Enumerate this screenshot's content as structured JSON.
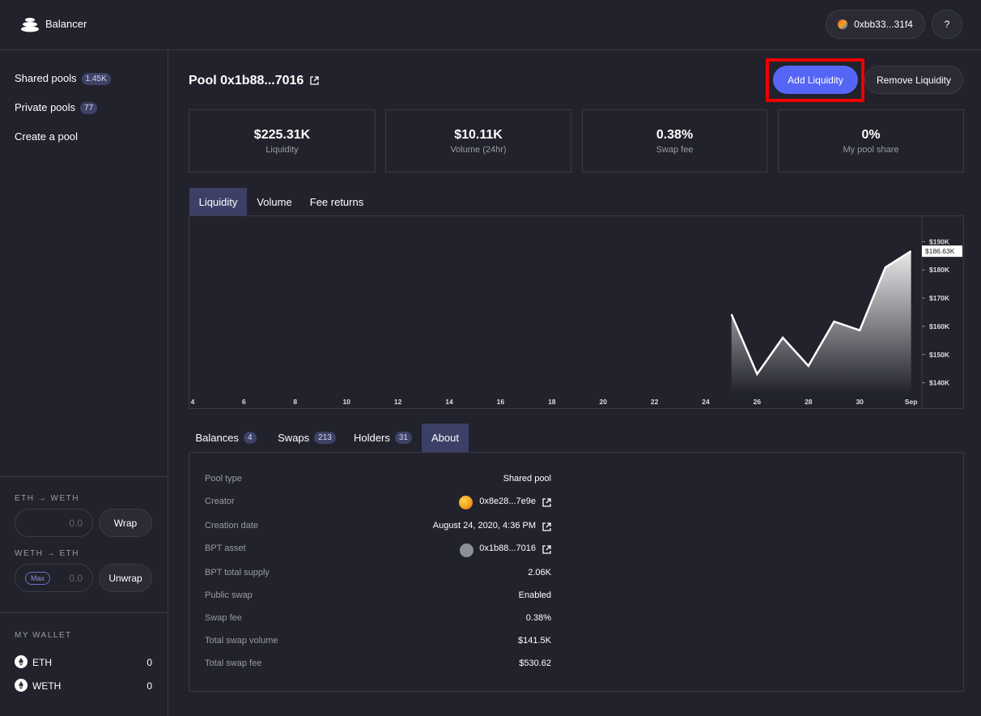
{
  "header": {
    "brand": "Balancer",
    "account": "0xbb33...31f4",
    "help": "?"
  },
  "sidebar": {
    "nav": [
      {
        "label": "Shared pools",
        "badge": "1.45K"
      },
      {
        "label": "Private pools",
        "badge": "77"
      },
      {
        "label": "Create a pool"
      }
    ],
    "wrap": {
      "title": "ETH → WETH",
      "placeholder": "0.0",
      "button": "Wrap"
    },
    "unwrap": {
      "title": "WETH → ETH",
      "max": "Max",
      "placeholder": "0.0",
      "button": "Unwrap"
    },
    "wallet": {
      "title": "MY WALLET",
      "assets": [
        {
          "symbol": "ETH",
          "balance": "0"
        },
        {
          "symbol": "WETH",
          "balance": "0"
        }
      ]
    }
  },
  "pool": {
    "title": "Pool 0x1b88...7016",
    "add_button": "Add Liquidity",
    "remove_button": "Remove Liquidity",
    "stats": [
      {
        "value": "$225.31K",
        "label": "Liquidity"
      },
      {
        "value": "$10.11K",
        "label": "Volume (24hr)"
      },
      {
        "value": "0.38%",
        "label": "Swap fee"
      },
      {
        "value": "0%",
        "label": "My pool share"
      }
    ],
    "chart_tabs": [
      "Liquidity",
      "Volume",
      "Fee returns"
    ],
    "detail_tabs": [
      {
        "label": "Balances",
        "badge": "4"
      },
      {
        "label": "Swaps",
        "badge": "213"
      },
      {
        "label": "Holders",
        "badge": "31"
      },
      {
        "label": "About"
      }
    ],
    "about": [
      [
        "Pool type",
        "Shared pool"
      ],
      [
        "Creator",
        "0x8e28...7e9e"
      ],
      [
        "Creation date",
        "August 24, 2020, 4:36 PM"
      ],
      [
        "BPT asset",
        "0x1b88...7016"
      ],
      [
        "BPT total supply",
        "2.06K"
      ],
      [
        "Public swap",
        "Enabled"
      ],
      [
        "Swap fee",
        "0.38%"
      ],
      [
        "Total swap volume",
        "$141.5K"
      ],
      [
        "Total swap fee",
        "$530.62"
      ]
    ]
  },
  "chart_data": {
    "type": "area",
    "color": "#ffffff",
    "categories": [
      "4",
      null,
      "6",
      null,
      "8",
      null,
      "10",
      null,
      "12",
      null,
      "14",
      null,
      "16",
      null,
      "18",
      null,
      "20",
      null,
      "22",
      null,
      "24",
      null,
      "26",
      null,
      "28",
      null,
      "30",
      null,
      "Sep"
    ],
    "values": [
      null,
      null,
      null,
      null,
      null,
      null,
      null,
      null,
      null,
      null,
      null,
      null,
      null,
      null,
      null,
      null,
      null,
      null,
      null,
      null,
      null,
      164.3,
      143.1,
      156,
      146,
      161.7,
      158.6,
      180.9,
      186.63
    ],
    "ylim": [
      131,
      199
    ],
    "yticks": [
      {
        "value": 140,
        "label": "$140K"
      },
      {
        "value": 150,
        "label": "$150K"
      },
      {
        "value": 160,
        "label": "$160K"
      },
      {
        "value": 170,
        "label": "$170K"
      },
      {
        "value": 180,
        "label": "$180K"
      },
      {
        "value": 190,
        "label": "$190K"
      }
    ],
    "annotation": {
      "value": 186.63,
      "label": "$186.63K"
    }
  }
}
